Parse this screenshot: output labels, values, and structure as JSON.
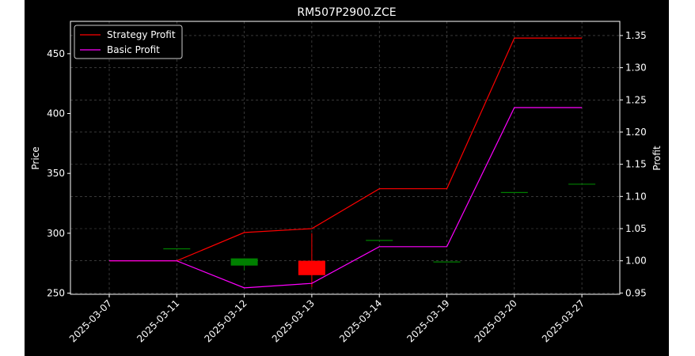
{
  "chart_data": {
    "type": "line",
    "title": "RM507P2900.ZCE",
    "xlabel": "",
    "ylabel": "Price",
    "y2label": "Profit",
    "categories": [
      "2025-03-07",
      "2025-03-11",
      "2025-03-12",
      "2025-03-13",
      "2025-03-14",
      "2025-03-19",
      "2025-03-20",
      "2025-03-27"
    ],
    "ylim": [
      249,
      477
    ],
    "y2lim": [
      0.948,
      1.372
    ],
    "yticks": [
      250,
      300,
      350,
      400,
      450
    ],
    "y2ticks": [
      0.95,
      1.0,
      1.05,
      1.1,
      1.15,
      1.2,
      1.25,
      1.3,
      1.35
    ],
    "grid": true,
    "legend_position": "top-left",
    "candles": [
      {
        "date": "2025-03-11",
        "open": 287,
        "close": 287,
        "high": 287,
        "low": 287
      },
      {
        "date": "2025-03-12",
        "open": 273,
        "close": 279,
        "high": 279,
        "low": 269
      },
      {
        "date": "2025-03-13",
        "open": 277,
        "close": 265,
        "high": 300,
        "low": 255
      },
      {
        "date": "2025-03-14",
        "open": 294,
        "close": 294,
        "high": 294,
        "low": 294
      },
      {
        "date": "2025-03-19",
        "open": 276,
        "close": 276,
        "high": 276,
        "low": 276
      },
      {
        "date": "2025-03-20",
        "open": 334,
        "close": 334,
        "high": 334,
        "low": 334
      },
      {
        "date": "2025-03-27",
        "open": 341,
        "close": 341,
        "high": 341,
        "low": 341
      }
    ],
    "series": [
      {
        "name": "Strategy Profit",
        "color": "#ff0000",
        "axis": "right",
        "values": [
          1.0,
          1.0,
          1.044,
          1.05,
          1.112,
          1.112,
          1.346,
          1.346
        ]
      },
      {
        "name": "Basic Profit",
        "color": "#ff00ff",
        "axis": "right",
        "values": [
          1.0,
          1.0,
          0.958,
          0.965,
          1.022,
          1.022,
          1.238,
          1.238
        ]
      }
    ],
    "colors": {
      "background": "#000000",
      "up": "#008000",
      "down": "#ff0000",
      "grid": "#808080",
      "axis": "#ffffff"
    }
  }
}
